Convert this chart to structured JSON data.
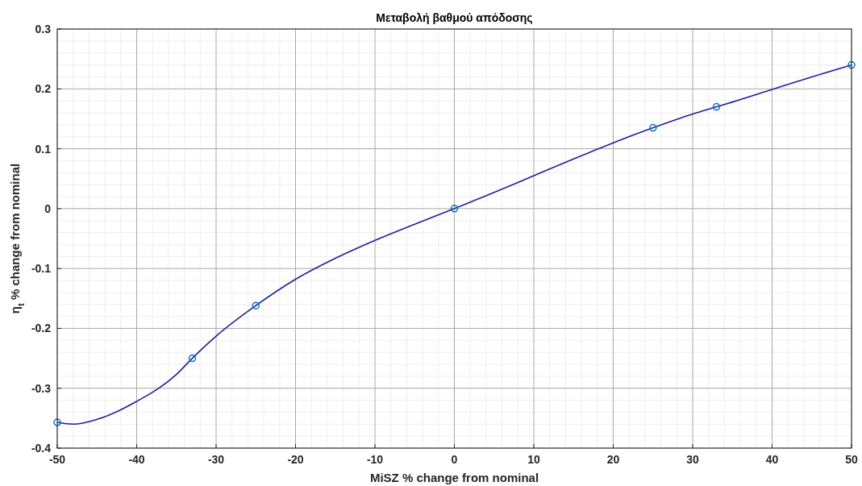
{
  "chart_data": {
    "type": "line",
    "title": "Μεταβολή βαθμού απόδοσης",
    "xlabel": "MiSZ % change from nominal",
    "ylabel": "η$_{t}$ % change from nominal",
    "xlim": [
      -50,
      50
    ],
    "xticks": [
      -50,
      -40,
      -30,
      -20,
      -10,
      0,
      10,
      20,
      30,
      40,
      50
    ],
    "ylim": [
      -0.4,
      0.3
    ],
    "yticks": [
      -0.4,
      -0.3,
      -0.2,
      -0.1,
      0,
      0.1,
      0.2,
      0.3
    ],
    "grid": true,
    "series": [
      {
        "color": "#1f1f9a",
        "marker": "none",
        "x": [
          -50,
          -48,
          -45,
          -40,
          -35,
          -33,
          -30,
          -25,
          -20,
          -15,
          -10,
          -5,
          0,
          5,
          10,
          15,
          20,
          25,
          30,
          33,
          35,
          40,
          45,
          50
        ],
        "values": [
          -0.357,
          -0.36,
          -0.352,
          -0.322,
          -0.277,
          -0.25,
          -0.213,
          -0.162,
          -0.118,
          -0.083,
          -0.053,
          -0.026,
          0,
          0.027,
          0.055,
          0.083,
          0.11,
          0.135,
          0.158,
          0.17,
          0.178,
          0.199,
          0.22,
          0.24
        ]
      },
      {
        "type": "scatter",
        "color": "#0072bd",
        "marker": "circle",
        "x": [
          -50,
          -33,
          -25,
          0,
          25,
          33,
          50
        ],
        "values": [
          -0.357,
          -0.25,
          -0.162,
          0,
          0.135,
          0.17,
          0.24
        ]
      }
    ]
  }
}
